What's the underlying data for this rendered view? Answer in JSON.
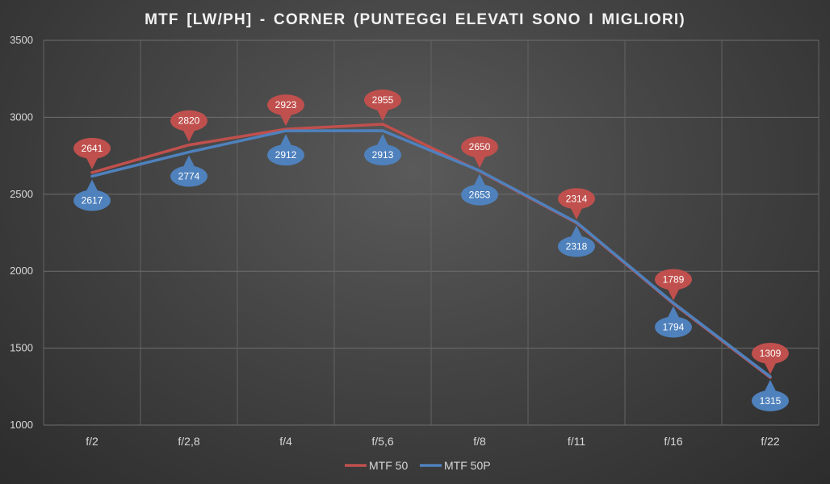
{
  "chart_data": {
    "type": "line",
    "title": "MTF [LW/PH] - CORNER (PUNTEGGI ELEVATI SONO I MIGLIORI)",
    "categories": [
      "f/2",
      "f/2,8",
      "f/4",
      "f/5,6",
      "f/8",
      "f/11",
      "f/16",
      "f/22"
    ],
    "series": [
      {
        "name": "MTF 50",
        "color": "#c0504d",
        "values": [
          2641,
          2820,
          2923,
          2955,
          2650,
          2314,
          1789,
          1309
        ]
      },
      {
        "name": "MTF 50P",
        "color": "#4f81bd",
        "values": [
          2617,
          2774,
          2912,
          2913,
          2653,
          2318,
          1794,
          1315
        ]
      }
    ],
    "ylim": [
      1000,
      3500
    ],
    "yticks": [
      1000,
      1500,
      2000,
      2500,
      3000,
      3500
    ],
    "grid": true,
    "legend": "bottom"
  }
}
